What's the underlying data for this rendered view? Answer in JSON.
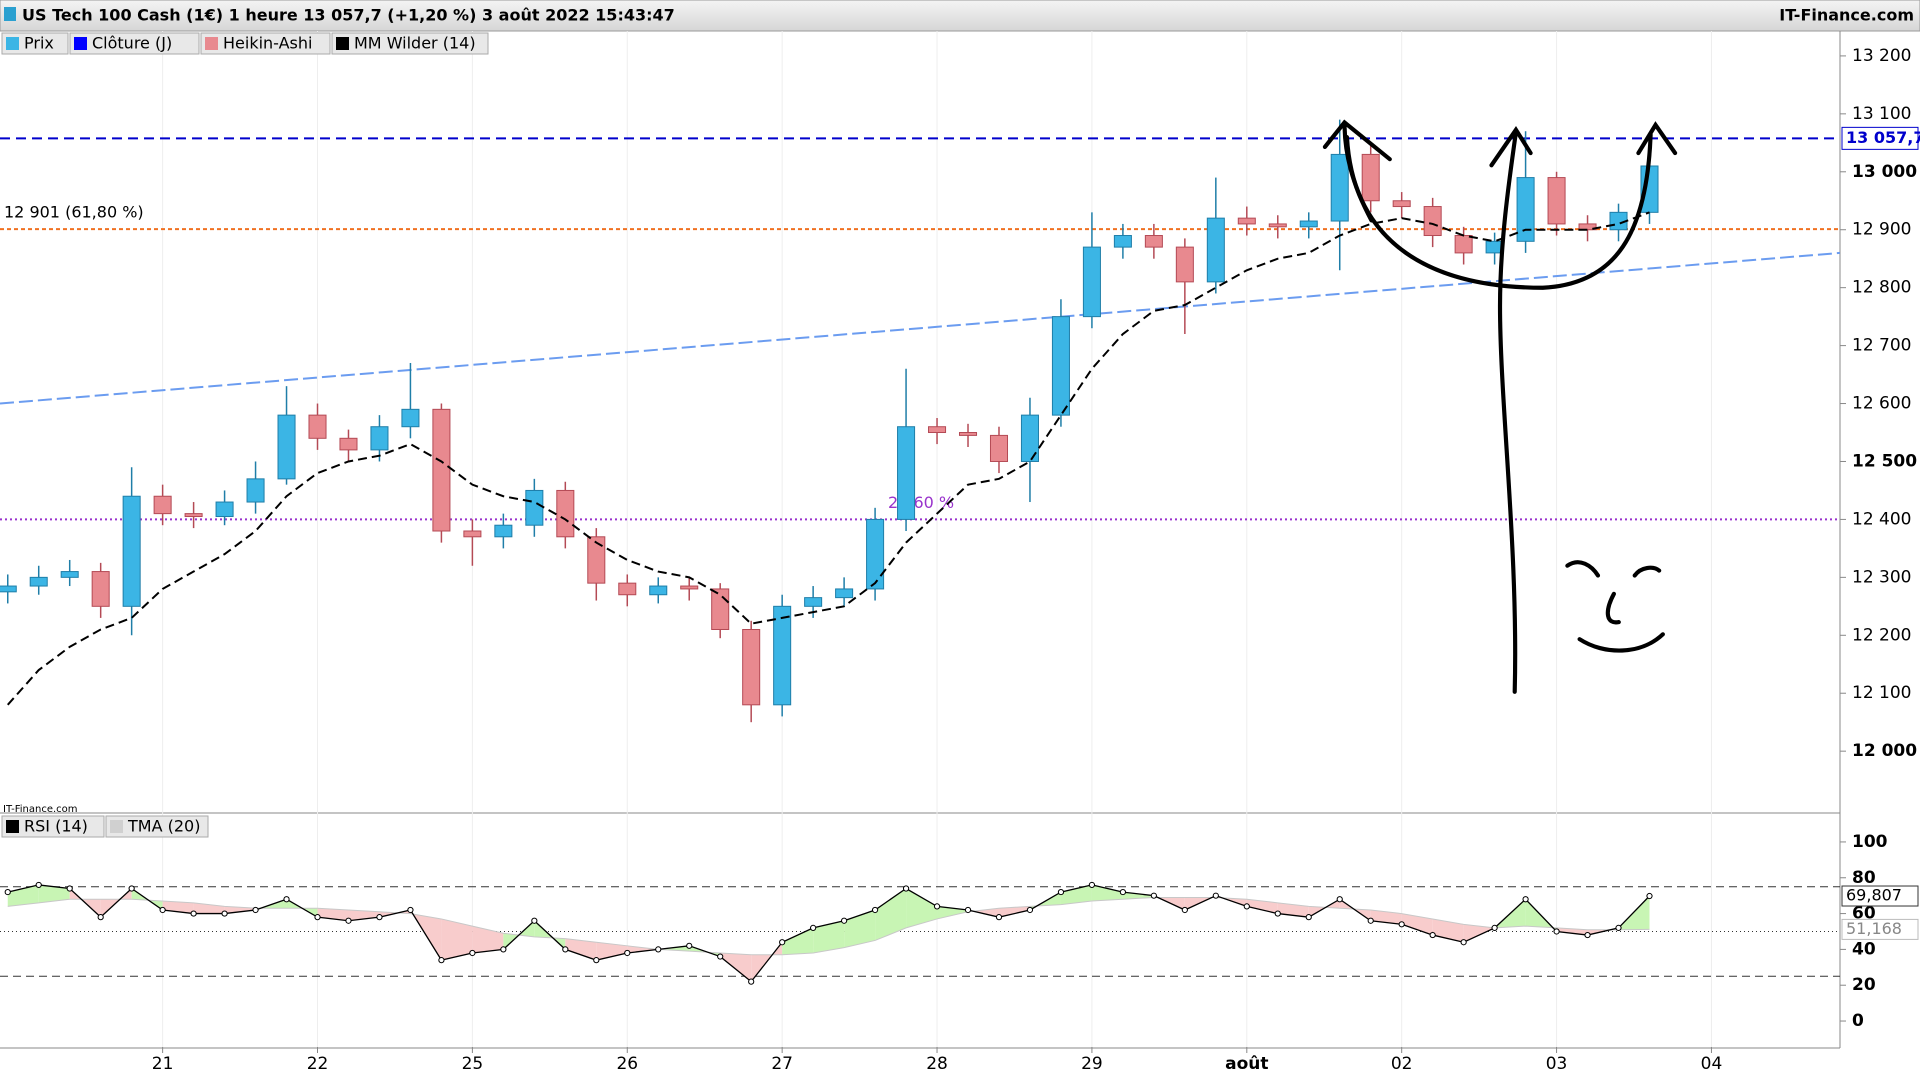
{
  "header": {
    "title": "US Tech 100 Cash (1€) 1 heure 13 057,7 (+1,20 %) 3 août 2022 15:43:47",
    "source": "IT-Finance.com",
    "watermark": "IT-Finance.com"
  },
  "chart_data": [
    {
      "type": "candlestick",
      "legend": [
        {
          "name": "Prix",
          "color": "#3bb5e5"
        },
        {
          "name": "Clôture (J)",
          "color": "#0000ff"
        },
        {
          "name": "Heikin-Ashi",
          "color": "#e8898f"
        },
        {
          "name": "MM Wilder (14)",
          "color": "#000000"
        }
      ],
      "up_color": "#3bb5e5",
      "down_color": "#e8898f",
      "x": [
        0,
        0.2,
        0.4,
        0.6,
        0.8,
        1,
        1.2,
        1.4,
        1.6,
        1.8,
        2,
        2.2,
        2.4,
        2.6,
        2.8,
        3,
        3.2,
        3.4,
        3.6,
        3.8,
        4,
        4.2,
        4.4,
        4.6,
        4.8,
        5,
        5.2,
        5.4,
        5.6,
        5.8,
        6,
        6.2,
        6.4,
        6.6,
        6.8,
        7,
        7.2,
        7.4,
        7.6,
        7.8,
        8,
        8.2,
        8.4,
        8.6,
        8.8,
        9,
        9.2,
        9.4,
        9.6,
        9.8,
        10,
        10.2,
        10.4,
        10.6
      ],
      "open": [
        12275,
        12285,
        12300,
        12310,
        12250,
        12440,
        12410,
        12405,
        12430,
        12470,
        12580,
        12540,
        12520,
        12560,
        12590,
        12380,
        12370,
        12390,
        12450,
        12370,
        12290,
        12270,
        12285,
        12280,
        12210,
        12080,
        12250,
        12265,
        12280,
        12400,
        12560,
        12550,
        12545,
        12500,
        12580,
        12750,
        12870,
        12890,
        12870,
        12810,
        12920,
        12910,
        12905,
        12915,
        13030,
        12950,
        12940,
        12890,
        12860,
        12880,
        12990,
        12910,
        12900,
        12930
      ],
      "high": [
        12305,
        12320,
        12330,
        12325,
        12490,
        12460,
        12430,
        12450,
        12500,
        12630,
        12600,
        12555,
        12580,
        12670,
        12600,
        12400,
        12410,
        12470,
        12465,
        12385,
        12305,
        12300,
        12300,
        12290,
        12225,
        12270,
        12285,
        12300,
        12420,
        12660,
        12575,
        12565,
        12560,
        12610,
        12780,
        12930,
        12910,
        12910,
        12885,
        12990,
        12940,
        12925,
        12930,
        13090,
        13045,
        12965,
        12955,
        12905,
        12895,
        13070,
        13000,
        12925,
        12945,
        13030
      ],
      "low": [
        12255,
        12270,
        12285,
        12230,
        12200,
        12390,
        12385,
        12390,
        12410,
        12460,
        12520,
        12500,
        12500,
        12540,
        12360,
        12320,
        12350,
        12370,
        12350,
        12260,
        12250,
        12255,
        12260,
        12195,
        12050,
        12060,
        12230,
        12250,
        12260,
        12380,
        12530,
        12525,
        12480,
        12430,
        12560,
        12730,
        12850,
        12850,
        12720,
        12790,
        12890,
        12885,
        12885,
        12830,
        12930,
        12920,
        12870,
        12840,
        12840,
        12860,
        12890,
        12880,
        12880,
        12910
      ],
      "close": [
        12285,
        12300,
        12310,
        12250,
        12440,
        12410,
        12405,
        12430,
        12470,
        12580,
        12540,
        12520,
        12560,
        12590,
        12380,
        12370,
        12390,
        12450,
        12370,
        12290,
        12270,
        12285,
        12280,
        12210,
        12080,
        12250,
        12265,
        12280,
        12400,
        12560,
        12550,
        12545,
        12500,
        12580,
        12750,
        12870,
        12890,
        12870,
        12810,
        12920,
        12910,
        12905,
        12915,
        13030,
        12950,
        12940,
        12890,
        12860,
        12880,
        12990,
        12910,
        12900,
        12930,
        13010
      ],
      "series": [
        {
          "name": "MM Wilder (14)",
          "color": "#000000",
          "values": [
            12080,
            12140,
            12180,
            12210,
            12230,
            12280,
            12310,
            12340,
            12380,
            12440,
            12480,
            12500,
            12510,
            12530,
            12500,
            12460,
            12440,
            12430,
            12400,
            12360,
            12330,
            12310,
            12300,
            12270,
            12220,
            12230,
            12240,
            12250,
            12290,
            12360,
            12410,
            12460,
            12470,
            12500,
            12580,
            12660,
            12720,
            12760,
            12770,
            12800,
            12830,
            12850,
            12860,
            12890,
            12910,
            12920,
            12910,
            12890,
            12880,
            12900,
            12900,
            12900,
            12910,
            12930
          ]
        }
      ],
      "lines": [
        {
          "value": 13057.7,
          "label": "13 057,7",
          "color": "#0000cc",
          "dash": "10,6"
        },
        {
          "value": 12901,
          "label": "12 901 (61,80 %)",
          "color": "#f07020",
          "dash": "4,3"
        },
        {
          "value": 12400,
          "label": "23,60 %",
          "color": "#9933cc",
          "dash": "2,3"
        }
      ],
      "trendline": {
        "x": [
          -0.05,
          11.83
        ],
        "y": [
          12600,
          12860
        ],
        "color": "#6b9cf0"
      },
      "xlim": [
        -0.05,
        11.83
      ],
      "xticks": [
        {
          "value": 1,
          "label": "21"
        },
        {
          "value": 2,
          "label": "22"
        },
        {
          "value": 3,
          "label": "25"
        },
        {
          "value": 4,
          "label": "26"
        },
        {
          "value": 5,
          "label": "27"
        },
        {
          "value": 6,
          "label": "28"
        },
        {
          "value": 7,
          "label": "29"
        },
        {
          "value": 8,
          "label": "août"
        },
        {
          "value": 9,
          "label": "02"
        },
        {
          "value": 10,
          "label": "03"
        },
        {
          "value": 11,
          "label": "04"
        }
      ],
      "ylim": [
        11895,
        13243
      ],
      "yticks": [
        {
          "value": 12000,
          "label": "12 000"
        },
        {
          "value": 12100,
          "label": "12 100"
        },
        {
          "value": 12200,
          "label": "12 200"
        },
        {
          "value": 12300,
          "label": "12 300"
        },
        {
          "value": 12400,
          "label": "12 400"
        },
        {
          "value": 12500,
          "label": "12 500"
        },
        {
          "value": 12600,
          "label": "12 600"
        },
        {
          "value": 12700,
          "label": "12 700"
        },
        {
          "value": 12800,
          "label": "12 800"
        },
        {
          "value": 12900,
          "label": "12 900"
        },
        {
          "value": 13000,
          "label": "13 000"
        },
        {
          "value": 13100,
          "label": "13 100"
        },
        {
          "value": 13200,
          "label": "13 200"
        }
      ]
    },
    {
      "type": "line",
      "legend": [
        {
          "name": "RSI (14)",
          "color": "#000000"
        },
        {
          "name": "TMA (20)",
          "color": "#d0d0d0"
        }
      ],
      "x": [
        0,
        0.2,
        0.4,
        0.6,
        0.8,
        1,
        1.2,
        1.4,
        1.6,
        1.8,
        2,
        2.2,
        2.4,
        2.6,
        2.8,
        3,
        3.2,
        3.4,
        3.6,
        3.8,
        4,
        4.2,
        4.4,
        4.6,
        4.8,
        5,
        5.2,
        5.4,
        5.6,
        5.8,
        6,
        6.2,
        6.4,
        6.6,
        6.8,
        7,
        7.2,
        7.4,
        7.6,
        7.8,
        8,
        8.2,
        8.4,
        8.6,
        8.8,
        9,
        9.2,
        9.4,
        9.6,
        9.8,
        10,
        10.2,
        10.4,
        10.6
      ],
      "series": [
        {
          "name": "RSI (14)",
          "color": "#000000",
          "values": [
            72,
            76,
            74,
            58,
            74,
            62,
            60,
            60,
            62,
            68,
            58,
            56,
            58,
            62,
            34,
            38,
            40,
            56,
            40,
            34,
            38,
            40,
            42,
            36,
            22,
            44,
            52,
            56,
            62,
            74,
            64,
            62,
            58,
            62,
            72,
            76,
            72,
            70,
            62,
            70,
            64,
            60,
            58,
            68,
            56,
            54,
            48,
            44,
            52,
            68,
            50,
            48,
            52,
            69.807
          ],
          "last_label": "69,807"
        },
        {
          "name": "TMA (20)",
          "color": "#c8c8c8",
          "values": [
            64,
            66,
            68,
            68,
            68,
            67,
            66,
            64,
            63,
            63,
            63,
            62,
            61,
            60,
            57,
            53,
            49,
            47,
            46,
            44,
            42,
            40,
            39,
            38,
            37,
            37,
            38,
            41,
            45,
            52,
            57,
            61,
            63,
            64,
            65,
            67,
            68,
            69,
            69,
            69,
            68,
            66,
            64,
            63,
            62,
            60,
            57,
            54,
            52,
            53,
            52,
            51,
            51,
            51.168
          ],
          "last_label": "51,168"
        }
      ],
      "levels": [
        75,
        50,
        25
      ],
      "xlim": [
        -0.05,
        11.83
      ],
      "ylim": [
        -14.5,
        115.6
      ],
      "yticks": [
        0,
        20,
        40,
        60,
        80,
        100
      ]
    }
  ]
}
